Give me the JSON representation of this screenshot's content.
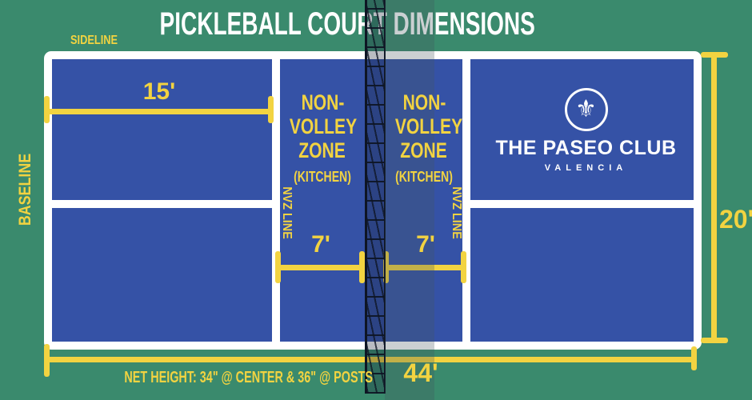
{
  "title": "PICKLEBALL COURT DIMENSIONS",
  "labels": {
    "sideline": "SIDELINE",
    "baseline": "BASELINE",
    "nvz_line_left": "NVZ LINE",
    "nvz_line_right": "NVZ LINE"
  },
  "nvz_left": {
    "line1": "NON-",
    "line2": "VOLLEY",
    "line3": "ZONE",
    "line4": "(KITCHEN)"
  },
  "nvz_right": {
    "line1": "NON-",
    "line2": "VOLLEY",
    "line3": "ZONE",
    "line4": "(KITCHEN)"
  },
  "measurements": {
    "court_half_width": "15'",
    "nvz_depth_left": "7'",
    "nvz_depth_right": "7'",
    "court_width": "20'",
    "court_length": "44'",
    "net_height": "NET HEIGHT: 34\" @ CENTER & 36\" @ POSTS"
  },
  "logo": {
    "icon": "fleur-de-lis-icon",
    "glyph": "⚜",
    "name": "THE PASEO CLUB",
    "subtitle": "VALENCIA"
  },
  "colors": {
    "background": "#3A8A6D",
    "court": "#3552A6",
    "line": "#FFFFFF",
    "accent": "#F2D341",
    "net": "#0E1524"
  }
}
